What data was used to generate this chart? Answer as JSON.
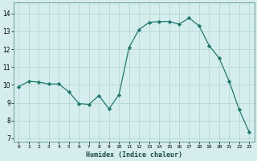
{
  "x": [
    0,
    1,
    2,
    3,
    4,
    5,
    6,
    7,
    8,
    9,
    10,
    11,
    12,
    13,
    14,
    15,
    16,
    17,
    18,
    19,
    20,
    21,
    22,
    23
  ],
  "y": [
    9.9,
    10.2,
    10.15,
    10.05,
    10.05,
    9.6,
    8.95,
    8.9,
    9.4,
    8.65,
    9.45,
    12.1,
    13.1,
    13.5,
    13.55,
    13.55,
    13.4,
    13.75,
    13.3,
    12.2,
    11.5,
    10.2,
    8.6,
    7.35
  ],
  "xlabel": "Humidex (Indice chaleur)",
  "xlim": [
    -0.5,
    23.5
  ],
  "ylim": [
    6.8,
    14.6
  ],
  "yticks": [
    7,
    8,
    9,
    10,
    11,
    12,
    13,
    14
  ],
  "xticks": [
    0,
    1,
    2,
    3,
    4,
    5,
    6,
    7,
    8,
    9,
    10,
    11,
    12,
    13,
    14,
    15,
    16,
    17,
    18,
    19,
    20,
    21,
    22,
    23
  ],
  "line_color": "#1e7a70",
  "bg_color": "#d5eeed",
  "grid_color": "#b8d8d5"
}
